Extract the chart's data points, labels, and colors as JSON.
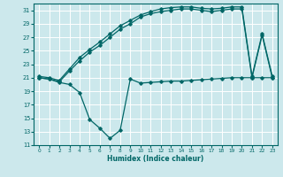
{
  "xlabel": "Humidex (Indice chaleur)",
  "bg_color": "#cce8ec",
  "grid_color": "#ffffff",
  "line_color": "#006666",
  "xlim": [
    -0.5,
    23.5
  ],
  "ylim": [
    11,
    32
  ],
  "xticks": [
    0,
    1,
    2,
    3,
    4,
    5,
    6,
    7,
    8,
    9,
    10,
    11,
    12,
    13,
    14,
    15,
    16,
    17,
    18,
    19,
    20,
    21,
    22,
    23
  ],
  "yticks": [
    11,
    13,
    15,
    17,
    19,
    21,
    23,
    25,
    27,
    29,
    31
  ],
  "curve_dip_x": [
    0,
    1,
    2,
    3,
    4,
    5,
    6,
    7,
    8,
    9,
    10,
    11,
    12,
    13,
    14,
    15,
    16,
    17,
    18,
    19,
    20,
    21,
    22,
    23
  ],
  "curve_dip_y": [
    21.0,
    20.8,
    20.3,
    20.0,
    18.8,
    14.8,
    13.5,
    12.0,
    13.2,
    20.8,
    20.2,
    20.3,
    20.4,
    20.5,
    20.5,
    20.6,
    20.7,
    20.8,
    20.9,
    21.0,
    21.0,
    21.0,
    21.0,
    21.0
  ],
  "curve_upper1_x": [
    0,
    1,
    2,
    3,
    4,
    5,
    6,
    7,
    8,
    9,
    10,
    11,
    12,
    13,
    14,
    15,
    16,
    17,
    18,
    19,
    20,
    21,
    22,
    23
  ],
  "curve_upper1_y": [
    21.2,
    21.0,
    20.6,
    22.3,
    24.0,
    25.2,
    26.3,
    27.5,
    28.7,
    29.5,
    30.3,
    30.8,
    31.2,
    31.4,
    31.5,
    31.5,
    31.3,
    31.2,
    31.3,
    31.5,
    31.5,
    21.2,
    27.5,
    21.2
  ],
  "curve_upper2_x": [
    0,
    1,
    2,
    3,
    4,
    5,
    6,
    7,
    8,
    9,
    10,
    11,
    12,
    13,
    14,
    15,
    16,
    17,
    18,
    19,
    20,
    21,
    22,
    23
  ],
  "curve_upper2_y": [
    21.0,
    20.8,
    20.4,
    22.0,
    23.5,
    24.8,
    25.8,
    27.0,
    28.2,
    29.0,
    30.0,
    30.5,
    30.8,
    31.0,
    31.2,
    31.2,
    31.0,
    30.8,
    31.0,
    31.2,
    31.2,
    21.0,
    27.3,
    21.0
  ]
}
